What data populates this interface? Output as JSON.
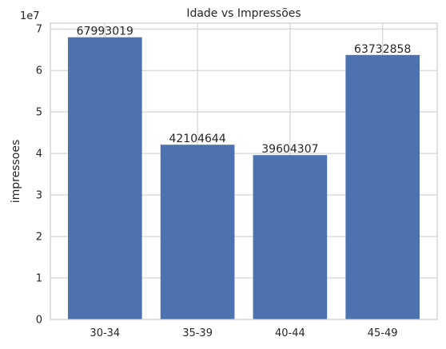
{
  "chart_data": {
    "type": "bar",
    "title": "Idade vs Impressões",
    "xlabel": "",
    "ylabel": "impressoes",
    "y_offset_label": "1e7",
    "y_scale": 10000000,
    "categories": [
      "30-34",
      "35-39",
      "40-44",
      "45-49"
    ],
    "values": [
      67993019,
      42104644,
      39604307,
      63732858
    ],
    "data_labels": [
      "67993019",
      "42104644",
      "39604307",
      "63732858"
    ],
    "ylim": [
      0,
      71392670
    ],
    "yticks": [
      0,
      1,
      2,
      3,
      4,
      5,
      6,
      7
    ],
    "grid": true,
    "bar_color": "#4c72b0",
    "grid_color": "#cccccc",
    "text_color": "#262626"
  }
}
